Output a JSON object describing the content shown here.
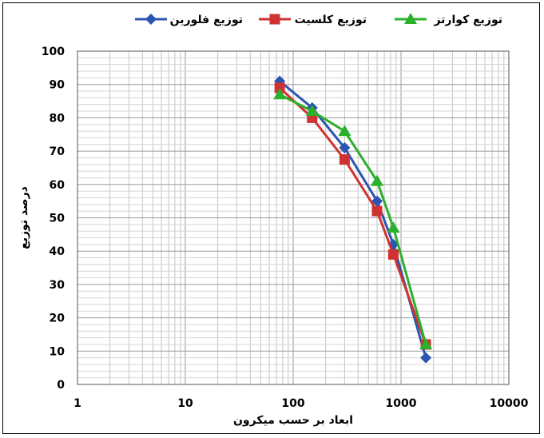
{
  "chart_data": {
    "type": "line",
    "xlabel": "ابعاد بر حسب میکرون",
    "ylabel": "درصد توزیع",
    "x_scale": "log",
    "xlim": [
      1,
      10000
    ],
    "ylim": [
      0,
      100
    ],
    "x_ticks": [
      1,
      10,
      100,
      1000,
      10000
    ],
    "x_tick_labels": [
      "1",
      "10",
      "100",
      "1000",
      "10000"
    ],
    "y_ticks": [
      0,
      10,
      20,
      30,
      40,
      50,
      60,
      70,
      80,
      90,
      100
    ],
    "y_tick_labels": [
      "0",
      "10",
      "20",
      "30",
      "40",
      "50",
      "60",
      "70",
      "80",
      "90",
      "100"
    ],
    "grid": true,
    "legend_position": "top",
    "series": [
      {
        "name": "توزیع فلورین",
        "color": "#2a55b0",
        "marker": "diamond",
        "x": [
          75,
          150,
          300,
          600,
          850,
          1700
        ],
        "y": [
          91,
          83,
          71,
          55,
          42,
          8
        ]
      },
      {
        "name": "توزیع کلسیت",
        "color": "#d03232",
        "marker": "square",
        "x": [
          75,
          150,
          300,
          600,
          850,
          1700
        ],
        "y": [
          89,
          80,
          67.5,
          52,
          39,
          12
        ]
      },
      {
        "name": "توزیع کوارتز",
        "color": "#2bb02b",
        "marker": "triangle",
        "x": [
          75,
          150,
          300,
          600,
          850,
          1700
        ],
        "y": [
          87,
          82,
          76,
          61,
          47,
          12
        ]
      }
    ]
  }
}
